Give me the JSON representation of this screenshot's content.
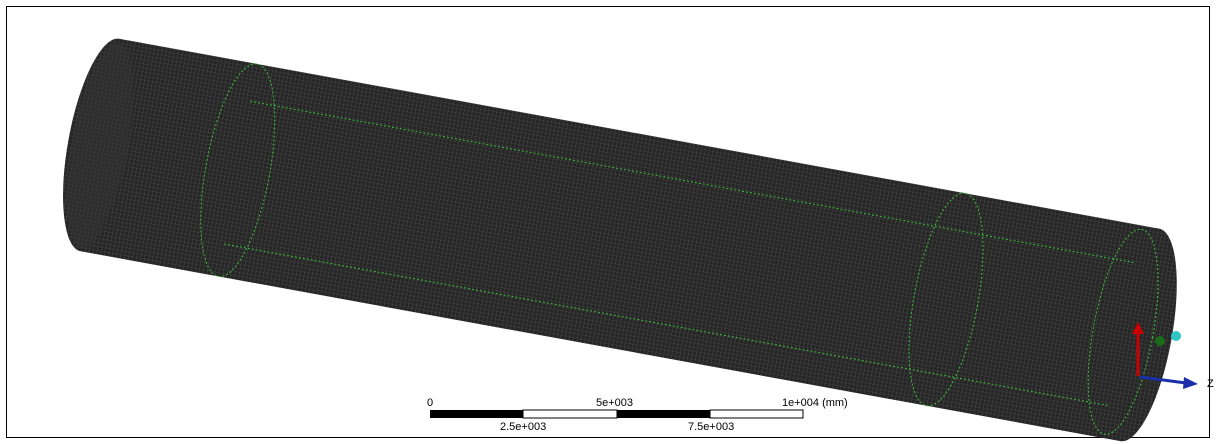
{
  "scale_bar": {
    "top_labels": [
      "0",
      "5e+003",
      "1e+004 (mm)"
    ],
    "bottom_labels": [
      "2.5e+003",
      "7.5e+003"
    ]
  },
  "triad": {
    "z_label": "Z"
  }
}
